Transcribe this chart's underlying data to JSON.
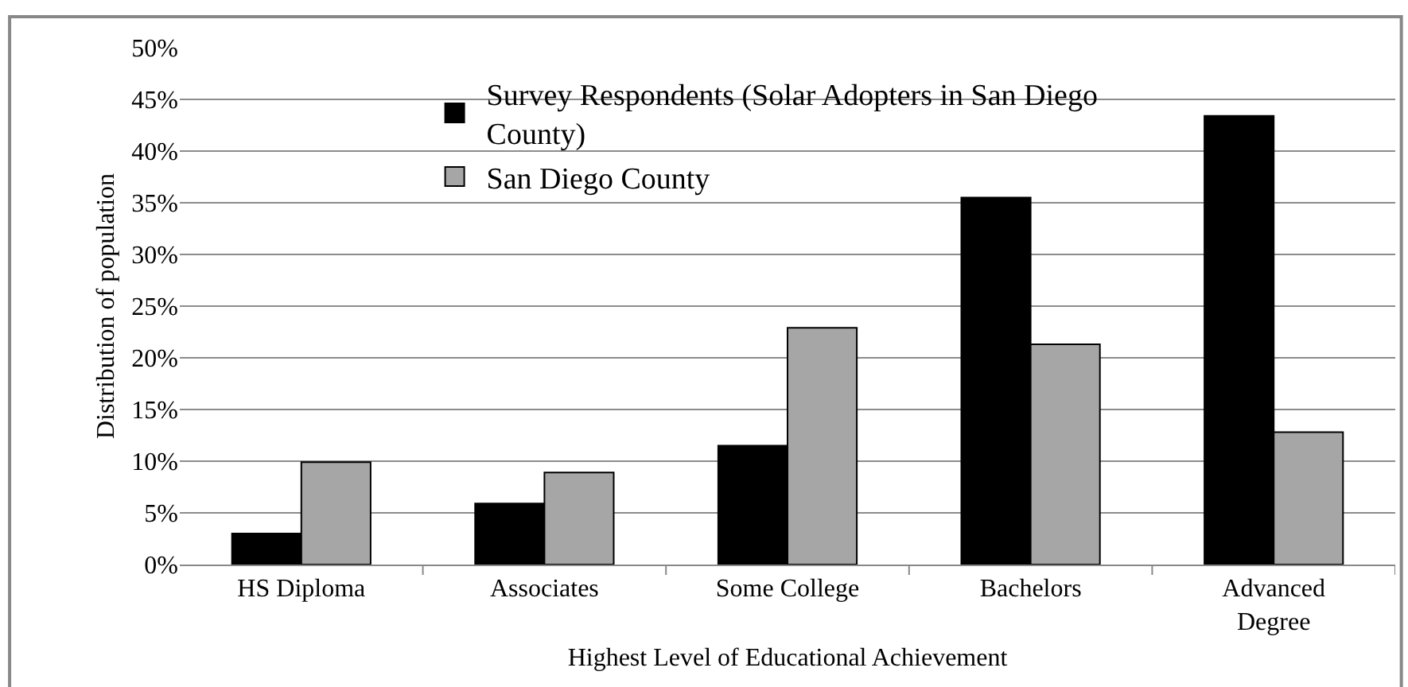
{
  "chart_data": {
    "type": "bar",
    "xlabel": "Highest Level of Educational Achievement",
    "ylabel": "Distribution of population",
    "categories": [
      "HS Diploma",
      "Associates",
      "Some College",
      "Bachelors",
      "Advanced Degree"
    ],
    "series": [
      {
        "name": "Survey Respondents (Solar Adopters in San Diego County)",
        "color": "#000000",
        "values": [
          3.0,
          5.9,
          11.5,
          35.5,
          43.4
        ]
      },
      {
        "name": "San Diego County",
        "color": "#a6a6a6",
        "values": [
          9.9,
          8.9,
          22.9,
          21.3,
          12.8
        ]
      }
    ],
    "ylim": [
      0,
      50
    ],
    "yticks": [
      {
        "value": 0,
        "label": "0%"
      },
      {
        "value": 5,
        "label": "5%"
      },
      {
        "value": 10,
        "label": "10%"
      },
      {
        "value": 15,
        "label": "15%"
      },
      {
        "value": 20,
        "label": "20%"
      },
      {
        "value": 25,
        "label": "25%"
      },
      {
        "value": 30,
        "label": "30%"
      },
      {
        "value": 35,
        "label": "35%"
      },
      {
        "value": 40,
        "label": "40%"
      },
      {
        "value": 45,
        "label": "45%"
      },
      {
        "value": 50,
        "label": "50%"
      }
    ],
    "grid": "y",
    "legend": "top"
  }
}
